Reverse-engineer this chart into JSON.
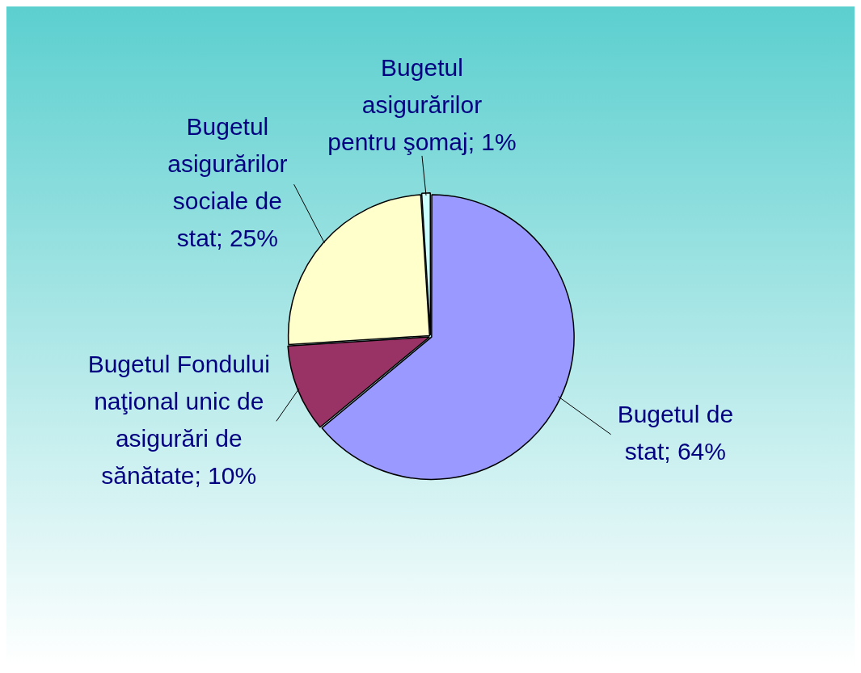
{
  "chart_data": {
    "type": "pie",
    "categories": [
      "Bugetul de stat",
      "Bugetul Fondului naţional unic de asigurări de sănătate",
      "Bugetul asigurărilor sociale de stat",
      "Bugetul asigurărilor pentru şomaj"
    ],
    "values": [
      64,
      10,
      25,
      1
    ],
    "value_labels": [
      "64%",
      "10%",
      "25%",
      "1%"
    ],
    "colors": [
      "#9999ff",
      "#993366",
      "#ffffcc",
      "#ccffff"
    ]
  }
}
